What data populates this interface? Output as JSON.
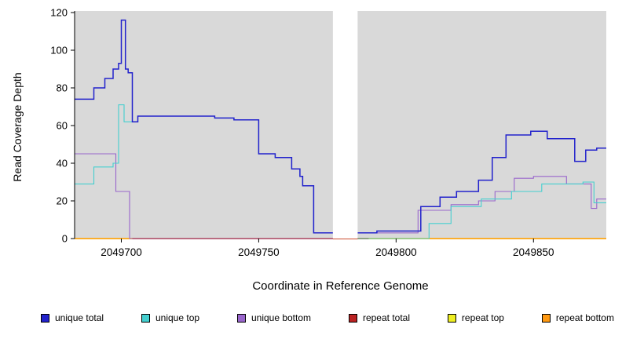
{
  "chart_data": {
    "type": "line",
    "title": "",
    "xlabel": "Coordinate in Reference Genome",
    "ylabel": "Read Coverage Depth",
    "xlim": [
      2049683,
      2049876.5
    ],
    "ylim": [
      0,
      120
    ],
    "xticks": [
      2049700,
      2049750,
      2049800,
      2049850
    ],
    "yticks": [
      0,
      20,
      40,
      60,
      80,
      100,
      120
    ],
    "plot_bg": "#d9d9d9",
    "gap_x": [
      2049777,
      2049786
    ],
    "series": [
      {
        "name": "repeat top",
        "color": "#eeee22",
        "width": 1.4,
        "segments": [
          {
            "points": [
              [
                2049683,
                0
              ]
            ],
            "end": 2049876.5
          }
        ]
      },
      {
        "name": "repeat bottom",
        "color": "#ff9911",
        "width": 1.4,
        "segments": [
          {
            "points": [
              [
                2049683,
                0
              ]
            ],
            "end": 2049876.5
          }
        ]
      },
      {
        "name": "repeat total",
        "color": "#bb2222",
        "width": 1.4,
        "segments": [
          {
            "points": [
              [
                2049704,
                0
              ]
            ],
            "end": 2049790
          }
        ]
      },
      {
        "name": "unique bottom",
        "color": "#9966cc",
        "width": 1.1,
        "segments": [
          {
            "points": [
              [
                2049683,
                45
              ],
              [
                2049698,
                25
              ],
              [
                2049703,
                0
              ]
            ],
            "end": 2049777
          },
          {
            "points": [
              [
                2049786,
                3
              ],
              [
                2049808,
                15
              ],
              [
                2049820,
                18
              ],
              [
                2049830,
                20
              ],
              [
                2049836,
                25
              ],
              [
                2049843,
                32
              ],
              [
                2049850,
                33
              ],
              [
                2049862,
                29
              ],
              [
                2049871,
                16
              ],
              [
                2049873,
                21
              ]
            ],
            "end": 2049876.5
          }
        ]
      },
      {
        "name": "unique top",
        "color": "#44cfcf",
        "width": 1.1,
        "segments": [
          {
            "points": [
              [
                2049683,
                29
              ],
              [
                2049690,
                38
              ],
              [
                2049697,
                40
              ],
              [
                2049699,
                71
              ],
              [
                2049701,
                62
              ],
              [
                2049704,
                62
              ],
              [
                2049706,
                65
              ],
              [
                2049734,
                64
              ],
              [
                2049741,
                63
              ],
              [
                2049750,
                45
              ],
              [
                2049756,
                43
              ],
              [
                2049762,
                37
              ],
              [
                2049765,
                33
              ],
              [
                2049766,
                28
              ],
              [
                2049770,
                3
              ]
            ],
            "end": 2049777
          },
          {
            "points": [
              [
                2049786,
                0
              ],
              [
                2049812,
                8
              ],
              [
                2049820,
                17
              ],
              [
                2049831,
                21
              ],
              [
                2049842,
                25
              ],
              [
                2049853,
                29
              ],
              [
                2049868,
                30
              ],
              [
                2049872,
                19
              ]
            ],
            "end": 2049876.5
          }
        ]
      },
      {
        "name": "unique total",
        "color": "#2222cc",
        "width": 1.5,
        "segments": [
          {
            "points": [
              [
                2049683,
                74
              ],
              [
                2049690,
                80
              ],
              [
                2049694,
                85
              ],
              [
                2049697,
                90
              ],
              [
                2049699,
                93
              ],
              [
                2049700,
                116
              ],
              [
                2049701.5,
                90
              ],
              [
                2049702.5,
                88
              ],
              [
                2049704,
                62
              ],
              [
                2049706,
                65
              ],
              [
                2049734,
                64
              ],
              [
                2049741,
                63
              ],
              [
                2049750,
                45
              ],
              [
                2049756,
                43
              ],
              [
                2049762,
                37
              ],
              [
                2049765,
                33
              ],
              [
                2049766,
                28
              ],
              [
                2049770,
                3
              ]
            ],
            "end": 2049777
          },
          {
            "points": [
              [
                2049786,
                3
              ],
              [
                2049793,
                4
              ],
              [
                2049809,
                17
              ],
              [
                2049816,
                22
              ],
              [
                2049822,
                25
              ],
              [
                2049830,
                31
              ],
              [
                2049835,
                43
              ],
              [
                2049840,
                55
              ],
              [
                2049849,
                57
              ],
              [
                2049855,
                53
              ],
              [
                2049865,
                41
              ],
              [
                2049869,
                47
              ],
              [
                2049873,
                48
              ]
            ],
            "end": 2049876.5
          }
        ]
      }
    ],
    "legend": [
      {
        "label": "unique total",
        "color": "#2222cc"
      },
      {
        "label": "unique top",
        "color": "#44cfcf"
      },
      {
        "label": "unique bottom",
        "color": "#9966cc"
      },
      {
        "label": "repeat total",
        "color": "#bb2222"
      },
      {
        "label": "repeat top",
        "color": "#eeee22"
      },
      {
        "label": "repeat bottom",
        "color": "#ff9911"
      }
    ]
  }
}
